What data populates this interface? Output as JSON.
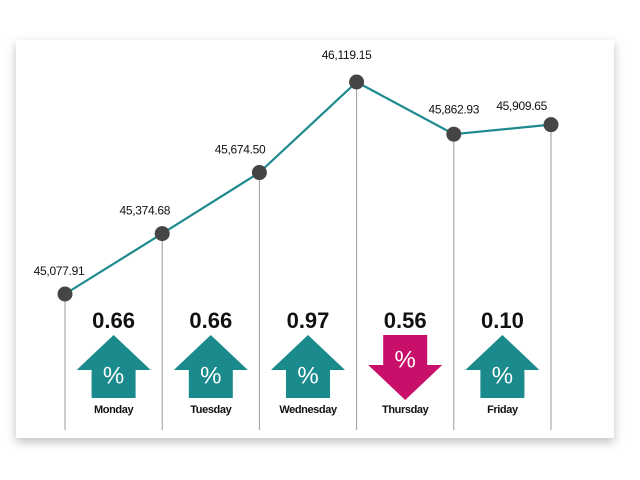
{
  "chart_data": {
    "type": "line",
    "categories": [
      null,
      "Monday",
      "Tuesday",
      "Wednesday",
      "Thursday",
      "Friday"
    ],
    "series": [
      {
        "name": null,
        "color": "#1e8a8f",
        "values": [
          45077.91,
          45374.68,
          45674.5,
          46119.15,
          45862.93,
          45909.65
        ],
        "value_labels": [
          "45,077.91",
          "45,374.68",
          "45,674.50",
          "46,119.15",
          "45,862.93",
          "45,909.65"
        ]
      }
    ],
    "daily_changes": {
      "categories": [
        "Monday",
        "Tuesday",
        "Wednesday",
        "Thursday",
        "Friday"
      ],
      "values": [
        0.66,
        0.66,
        0.97,
        0.56,
        0.1
      ],
      "value_labels": [
        "0.66",
        "0.66",
        "0.97",
        "0.56",
        "0.10"
      ],
      "directions": [
        "up",
        "up",
        "up",
        "down",
        "up"
      ],
      "symbol": "%",
      "up_color": "#1a8a8c",
      "down_color": "#c8106a"
    }
  }
}
